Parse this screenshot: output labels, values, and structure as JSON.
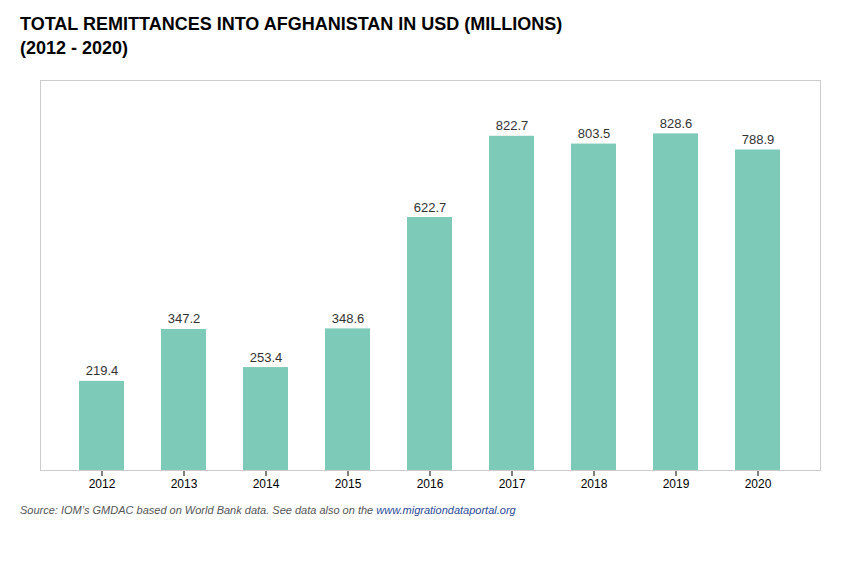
{
  "chart_data": {
    "type": "bar",
    "title": "TOTAL REMITTANCES INTO AFGHANISTAN IN USD (MILLIONS)",
    "subtitle": "(2012 - 2020)",
    "caption": [
      "Source:  IOM’s GMDAC based on World Bank data. See data also on the ",
      "www.migrationdataportal.org"
    ],
    "categories": [
      "2012",
      "2013",
      "2014",
      "2015",
      "2016",
      "2017",
      "2018",
      "2019",
      "2020"
    ],
    "values": [
      219.4,
      347.2,
      253.4,
      348.6,
      622.7,
      822.7,
      803.5,
      828.6,
      788.9
    ],
    "color": "#7ecab9",
    "ylim": [
      0,
      960
    ],
    "grid": false,
    "data_labels": true,
    "tick_labels": "x"
  }
}
